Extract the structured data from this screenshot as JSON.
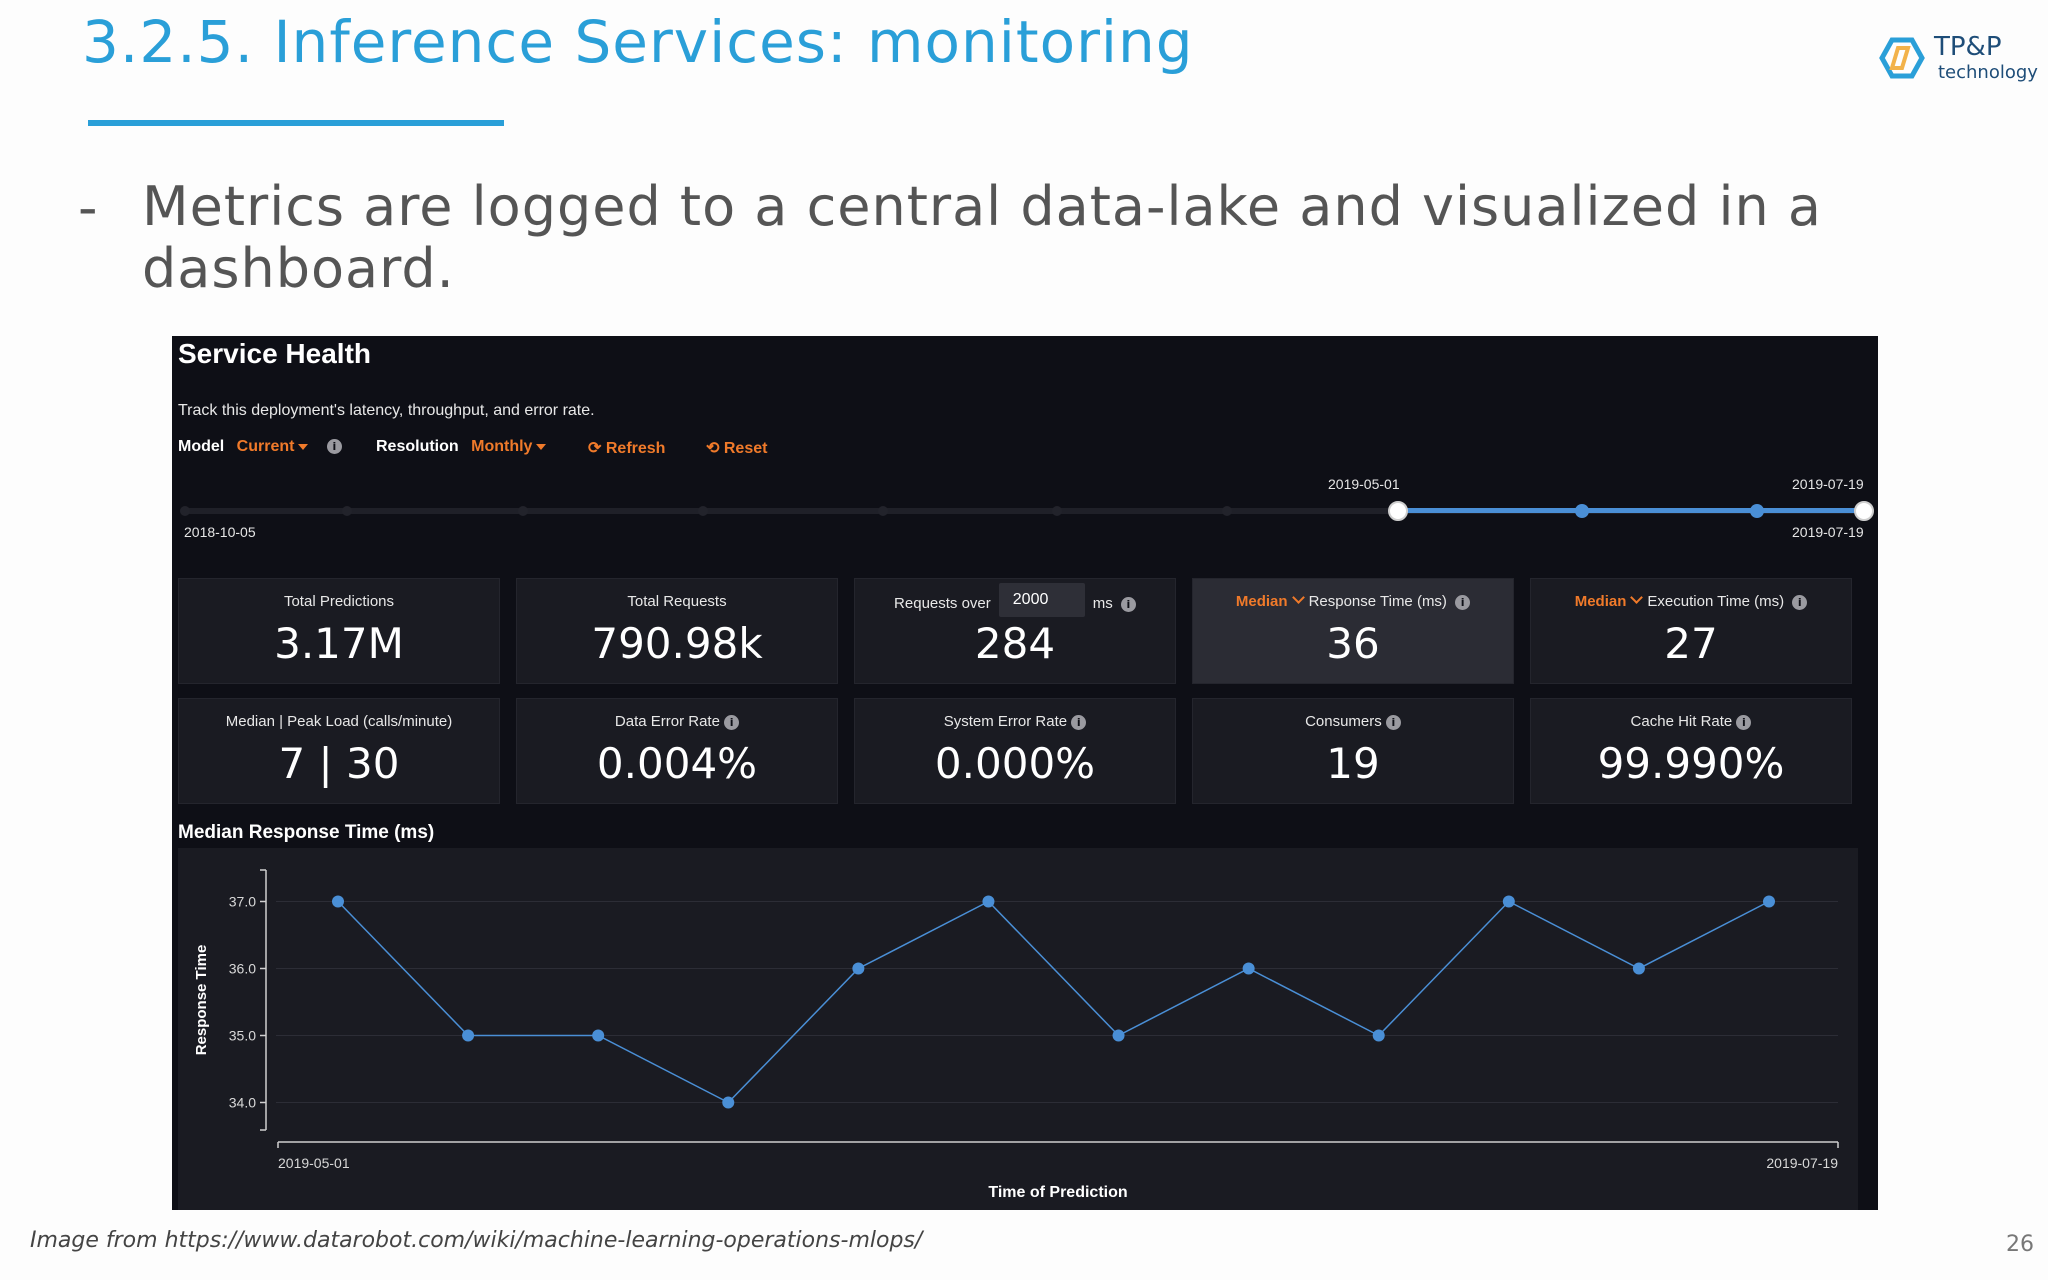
{
  "slide": {
    "title": "3.2.5. Inference Services: monitoring",
    "bullet_dash": "-",
    "bullet": "Metrics are logged to a central data-lake and visualized in a dashboard.",
    "source": "Image from https://www.datarobot.com/wiki/machine-learning-operations-mlops/",
    "page_number": "26",
    "logo": {
      "name": "TP&P",
      "tagline": "technology",
      "mark_icon": "hexagon-logo-icon",
      "colors": [
        "#2a9fd8",
        "#f2b24a",
        "#1e4d78"
      ]
    }
  },
  "dashboard": {
    "title": "Service Health",
    "subtitle": "Track this deployment's latency, throughput, and error rate.",
    "controls": {
      "model_label": "Model",
      "model_value": "Current",
      "resolution_label": "Resolution",
      "resolution_value": "Monthly",
      "refresh_label": "Refresh",
      "reset_label": "Reset",
      "accent_color": "#f07a2a"
    },
    "timeline": {
      "full_start": "2018-10-05",
      "full_end": "2019-07-19",
      "range_start": "2019-05-01",
      "range_end": "2019-07-19"
    },
    "cards_row1": [
      {
        "label": "Total Predictions",
        "value": "3.17M"
      },
      {
        "label": "Total Requests",
        "value": "790.98k"
      },
      {
        "label_pre": "Requests over",
        "input_value": "2000",
        "label_post": "ms",
        "value": "284"
      },
      {
        "agg": "Median",
        "label": "Response Time (ms)",
        "value": "36",
        "selected": true
      },
      {
        "agg": "Median",
        "label": "Execution Time (ms)",
        "value": "27"
      }
    ],
    "cards_row2": [
      {
        "label": "Median | Peak Load (calls/minute)",
        "value": "7 | 30"
      },
      {
        "label": "Data Error Rate",
        "value": "0.004%"
      },
      {
        "label": "System Error Rate",
        "value": "0.000%"
      },
      {
        "label": "Consumers",
        "value": "19"
      },
      {
        "label": "Cache Hit Rate",
        "value": "99.990%"
      }
    ]
  },
  "chart_data": {
    "type": "line",
    "title": "Median Response Time (ms)",
    "xlabel": "Time of Prediction",
    "ylabel": "Response Time",
    "x_tick_labels": [
      "2019-05-01",
      "2019-07-19"
    ],
    "y_ticks": [
      34.0,
      35.0,
      36.0,
      37.0
    ],
    "y_tick_labels": [
      "34.0",
      "35.0",
      "36.0",
      "37.0"
    ],
    "ylim": [
      33.5,
      37.5
    ],
    "values": [
      37,
      35,
      35,
      34,
      36,
      37,
      35,
      36,
      35,
      37,
      36,
      37
    ],
    "grid": true,
    "legend": "none",
    "line_color": "#4a8fd6"
  }
}
